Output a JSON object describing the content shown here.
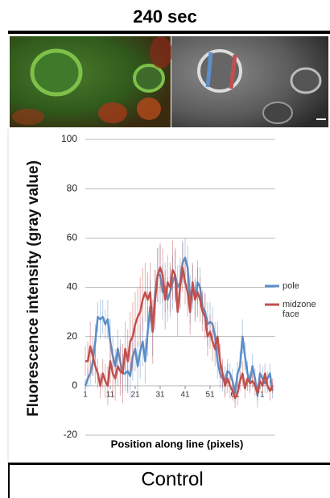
{
  "chart_data": {
    "type": "line",
    "header": "240 sec",
    "footer": "Control",
    "xlabel": "Position along line (pixels)",
    "ylabel": "Fluorescence intensity (gray value)",
    "x": [
      1,
      2,
      3,
      4,
      5,
      6,
      7,
      8,
      9,
      10,
      11,
      12,
      13,
      14,
      15,
      16,
      17,
      18,
      19,
      20,
      21,
      22,
      23,
      24,
      25,
      26,
      27,
      28,
      29,
      30,
      31,
      32,
      33,
      34,
      35,
      36,
      37,
      38,
      39,
      40,
      41,
      42,
      43,
      44,
      45,
      46,
      47,
      48,
      49,
      50,
      51,
      52,
      53,
      54,
      55,
      56,
      57,
      58,
      59,
      60,
      61,
      62,
      63,
      64,
      65,
      66,
      67,
      68,
      69,
      70,
      71,
      72,
      73,
      74,
      75,
      76
    ],
    "xlim": [
      1,
      77
    ],
    "xticks": [
      1,
      11,
      21,
      31,
      41,
      51,
      61,
      71
    ],
    "ylim": [
      -20,
      100
    ],
    "yticks": [
      -20,
      0,
      20,
      40,
      60,
      80,
      100
    ],
    "grid": true,
    "series": [
      {
        "name": "pole",
        "color": "#5b8fc9",
        "values": [
          0,
          3,
          5,
          10,
          18,
          28,
          27,
          28,
          25,
          27,
          18,
          12,
          8,
          15,
          10,
          5,
          5,
          6,
          4,
          12,
          15,
          8,
          14,
          18,
          10,
          22,
          32,
          22,
          38,
          45,
          45,
          38,
          40,
          35,
          38,
          42,
          45,
          40,
          42,
          50,
          52,
          48,
          35,
          40,
          35,
          42,
          40,
          32,
          30,
          25,
          26,
          25,
          20,
          10,
          5,
          3,
          2,
          6,
          5,
          2,
          -3,
          5,
          8,
          20,
          12,
          5,
          2,
          8,
          3,
          -4,
          5,
          3,
          1,
          3,
          5,
          -2
        ],
        "errors": [
          3,
          4,
          5,
          6,
          7,
          6,
          8,
          7,
          6,
          8,
          9,
          8,
          7,
          8,
          9,
          8,
          7,
          8,
          9,
          10,
          9,
          10,
          11,
          10,
          9,
          10,
          11,
          10,
          9,
          11,
          12,
          11,
          10,
          9,
          10,
          11,
          10,
          9,
          10,
          9,
          8,
          9,
          10,
          9,
          8,
          9,
          8,
          7,
          8,
          9,
          8,
          7,
          6,
          7,
          6,
          5,
          6,
          5,
          4,
          5,
          4,
          5,
          6,
          7,
          6,
          5,
          4,
          5,
          4,
          5,
          4,
          5,
          4,
          3,
          4,
          3
        ]
      },
      {
        "name": "midzone face",
        "color": "#c0504d",
        "values": [
          10,
          10,
          16,
          12,
          8,
          5,
          0,
          5,
          2,
          0,
          10,
          5,
          3,
          8,
          6,
          5,
          15,
          10,
          18,
          20,
          25,
          28,
          30,
          35,
          38,
          35,
          38,
          22,
          35,
          45,
          48,
          45,
          35,
          42,
          40,
          47,
          45,
          30,
          40,
          48,
          42,
          38,
          30,
          42,
          35,
          38,
          35,
          30,
          28,
          20,
          22,
          18,
          15,
          20,
          10,
          5,
          0,
          3,
          0,
          -2,
          -5,
          -3,
          2,
          5,
          -1,
          3,
          1,
          2,
          0,
          -3,
          2,
          0,
          5,
          0,
          -2,
          0
        ],
        "errors": [
          6,
          8,
          10,
          8,
          7,
          6,
          5,
          6,
          7,
          8,
          9,
          10,
          9,
          8,
          10,
          12,
          11,
          13,
          12,
          14,
          13,
          12,
          14,
          13,
          12,
          11,
          12,
          13,
          12,
          11,
          10,
          11,
          12,
          11,
          10,
          12,
          11,
          10,
          9,
          10,
          9,
          10,
          9,
          8,
          9,
          10,
          9,
          8,
          9,
          8,
          7,
          8,
          7,
          6,
          7,
          6,
          5,
          6,
          5,
          4,
          4,
          5,
          4,
          5,
          4,
          5,
          4,
          3,
          4,
          3,
          4,
          3,
          4,
          3,
          4,
          3
        ]
      }
    ]
  }
}
